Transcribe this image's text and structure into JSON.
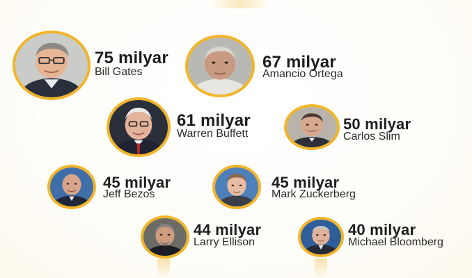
{
  "accent_color": "#f2b52a",
  "people": [
    {
      "amount": "75 milyar",
      "name": "Bill Gates"
    },
    {
      "amount": "67 milyar",
      "name": "Amancio Ortega"
    },
    {
      "amount": "61 milyar",
      "name": "Warren Buffett"
    },
    {
      "amount": "50 milyar",
      "name": "Carlos Slim"
    },
    {
      "amount": "45 milyar",
      "name": "Jeff Bezos"
    },
    {
      "amount": "45 milyar",
      "name": "Mark Zuckerberg"
    },
    {
      "amount": "44 milyar",
      "name": "Larry Ellison"
    },
    {
      "amount": "40 milyar",
      "name": "Michael Bloomberg"
    }
  ]
}
